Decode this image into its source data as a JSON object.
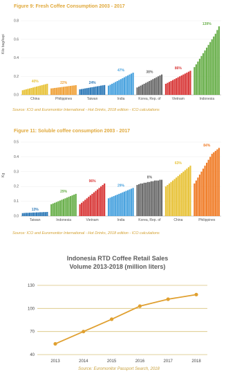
{
  "chart_data": [
    {
      "type": "bar",
      "title": "Figure 9: Fresh Coffee Consumption 2003 - 2017",
      "source": "Source: ICO and Euromonitor International - Hot Drinks, 2018 edition - ICO calculations",
      "ylabel": "Kilo bag/kapi",
      "ylim": [
        0,
        0.8
      ],
      "yticks": [
        "0.8",
        "0.6",
        "0.4",
        "0.2",
        "0.0"
      ],
      "groups": [
        {
          "name": "China",
          "label": "40%",
          "color": "#e8c33a",
          "values": [
            0.05,
            0.055,
            0.06,
            0.065,
            0.07,
            0.075,
            0.08,
            0.085,
            0.09,
            0.095,
            0.1,
            0.105,
            0.11,
            0.115,
            0.12
          ]
        },
        {
          "name": "Philippines",
          "label": "22%",
          "color": "#f0a23a",
          "values": [
            0.07,
            0.072,
            0.075,
            0.077,
            0.08,
            0.082,
            0.085,
            0.087,
            0.09,
            0.092,
            0.095,
            0.097,
            0.1,
            0.102,
            0.105
          ]
        },
        {
          "name": "Taiwan",
          "label": "24%",
          "color": "#2f7ab8",
          "values": [
            0.06,
            0.063,
            0.066,
            0.07,
            0.073,
            0.076,
            0.08,
            0.083,
            0.086,
            0.09,
            0.093,
            0.096,
            0.1,
            0.103,
            0.106
          ]
        },
        {
          "name": "India",
          "label": "47%",
          "color": "#4aa3df",
          "values": [
            0.1,
            0.11,
            0.12,
            0.13,
            0.14,
            0.15,
            0.16,
            0.17,
            0.18,
            0.19,
            0.2,
            0.21,
            0.22,
            0.23,
            0.24
          ]
        },
        {
          "name": "Korea, Rep. of",
          "label": "38%",
          "color": "#6b6b6b",
          "values": [
            0.08,
            0.09,
            0.1,
            0.11,
            0.12,
            0.13,
            0.14,
            0.15,
            0.16,
            0.17,
            0.18,
            0.19,
            0.2,
            0.21,
            0.22
          ]
        },
        {
          "name": "Vietnam",
          "label": "86%",
          "color": "#d93a3a",
          "values": [
            0.12,
            0.13,
            0.14,
            0.15,
            0.16,
            0.17,
            0.18,
            0.19,
            0.2,
            0.21,
            0.22,
            0.23,
            0.24,
            0.25,
            0.26
          ]
        },
        {
          "name": "Indonesia",
          "label": "139%",
          "color": "#6ab04c",
          "values": [
            0.3,
            0.33,
            0.36,
            0.39,
            0.42,
            0.45,
            0.48,
            0.51,
            0.54,
            0.57,
            0.6,
            0.63,
            0.66,
            0.7,
            0.74
          ]
        }
      ]
    },
    {
      "type": "bar",
      "title": "Figure 11: Soluble coffee consumption 2003 - 2017",
      "source": "Source: ICO and Euromonitor International - Hot Drinks, 2018 edition - ICO calculations",
      "ylabel": "Kg",
      "ylim": [
        0,
        0.5
      ],
      "yticks": [
        "0.5",
        "0.4",
        "0.3",
        "0.2",
        "0.1",
        "0.0"
      ],
      "groups": [
        {
          "name": "Taiwan",
          "label": "13%",
          "color": "#2f7ab8",
          "values": [
            0.02,
            0.021,
            0.022,
            0.022,
            0.023,
            0.023,
            0.024,
            0.024,
            0.025,
            0.025,
            0.026,
            0.026,
            0.027,
            0.027,
            0.028
          ]
        },
        {
          "name": "Indonesia",
          "label": "29%",
          "color": "#6ab04c",
          "values": [
            0.08,
            0.085,
            0.09,
            0.095,
            0.1,
            0.105,
            0.11,
            0.115,
            0.12,
            0.125,
            0.13,
            0.135,
            0.14,
            0.145,
            0.15
          ]
        },
        {
          "name": "Vietnam",
          "label": "96%",
          "color": "#d93a3a",
          "values": [
            0.08,
            0.09,
            0.1,
            0.11,
            0.12,
            0.13,
            0.14,
            0.15,
            0.16,
            0.17,
            0.18,
            0.19,
            0.2,
            0.21,
            0.22
          ]
        },
        {
          "name": "India",
          "label": "29%",
          "color": "#4aa3df",
          "values": [
            0.12,
            0.125,
            0.13,
            0.135,
            0.14,
            0.145,
            0.15,
            0.155,
            0.16,
            0.165,
            0.17,
            0.175,
            0.18,
            0.185,
            0.19
          ]
        },
        {
          "name": "Korea, Rep. of",
          "label": "8%",
          "color": "#6b6b6b",
          "values": [
            0.21,
            0.215,
            0.22,
            0.22,
            0.225,
            0.225,
            0.23,
            0.23,
            0.235,
            0.235,
            0.24,
            0.24,
            0.24,
            0.245,
            0.245
          ]
        },
        {
          "name": "China",
          "label": "63%",
          "color": "#e8c33a",
          "values": [
            0.2,
            0.21,
            0.22,
            0.23,
            0.24,
            0.25,
            0.26,
            0.27,
            0.28,
            0.29,
            0.3,
            0.31,
            0.32,
            0.33,
            0.34
          ]
        },
        {
          "name": "Philippines",
          "label": "84%",
          "color": "#f07e2a",
          "values": [
            0.22,
            0.24,
            0.26,
            0.28,
            0.3,
            0.32,
            0.34,
            0.36,
            0.38,
            0.4,
            0.42,
            0.43,
            0.44,
            0.45,
            0.46
          ]
        }
      ]
    },
    {
      "type": "line",
      "title": [
        "Indonesia RTD Coffee Retail Sales",
        "Volume 2013-2018 (million liters)"
      ],
      "source": "Source: Euromonitor Passport Search, 2018",
      "x": [
        "2013",
        "2014",
        "2015",
        "2016",
        "2017",
        "2018"
      ],
      "values": [
        54,
        70,
        86,
        103,
        112,
        118
      ],
      "ylim": [
        40,
        130
      ],
      "yticks": [
        40,
        70,
        100,
        130
      ],
      "color": "#e0a030"
    }
  ]
}
